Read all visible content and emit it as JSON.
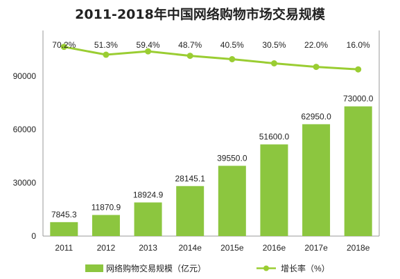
{
  "chart_data": {
    "type": "bar",
    "title": "2011-2018年中国网络购物市场交易规模",
    "categories": [
      "2011",
      "2012",
      "2013",
      "2014e",
      "2015e",
      "2016e",
      "2017e",
      "2018e"
    ],
    "series": [
      {
        "name": "网络购物交易规模（亿元）",
        "type": "bar",
        "values": [
          7845.3,
          11870.9,
          18924.9,
          28145.1,
          39550.0,
          51600.0,
          62950.0,
          73000.0
        ],
        "labels": [
          "7845.3",
          "11870.9",
          "18924.9",
          "28145.1",
          "39550.0",
          "51600.0",
          "62950.0",
          "73000.0"
        ],
        "color": "#8cc63f"
      },
      {
        "name": "增长率（%）",
        "type": "line",
        "values": [
          70.2,
          51.3,
          59.4,
          48.7,
          40.5,
          30.5,
          22.0,
          16.0
        ],
        "labels": [
          "70.2%",
          "51.3%",
          "59.4%",
          "48.7%",
          "40.5%",
          "30.5%",
          "22.0%",
          "16.0%"
        ],
        "color": "#9acd32"
      }
    ],
    "y_ticks": [
      "0",
      "30000",
      "60000",
      "90000"
    ],
    "ylim": [
      0,
      90000
    ],
    "legend_position": "bottom",
    "grid": false
  }
}
